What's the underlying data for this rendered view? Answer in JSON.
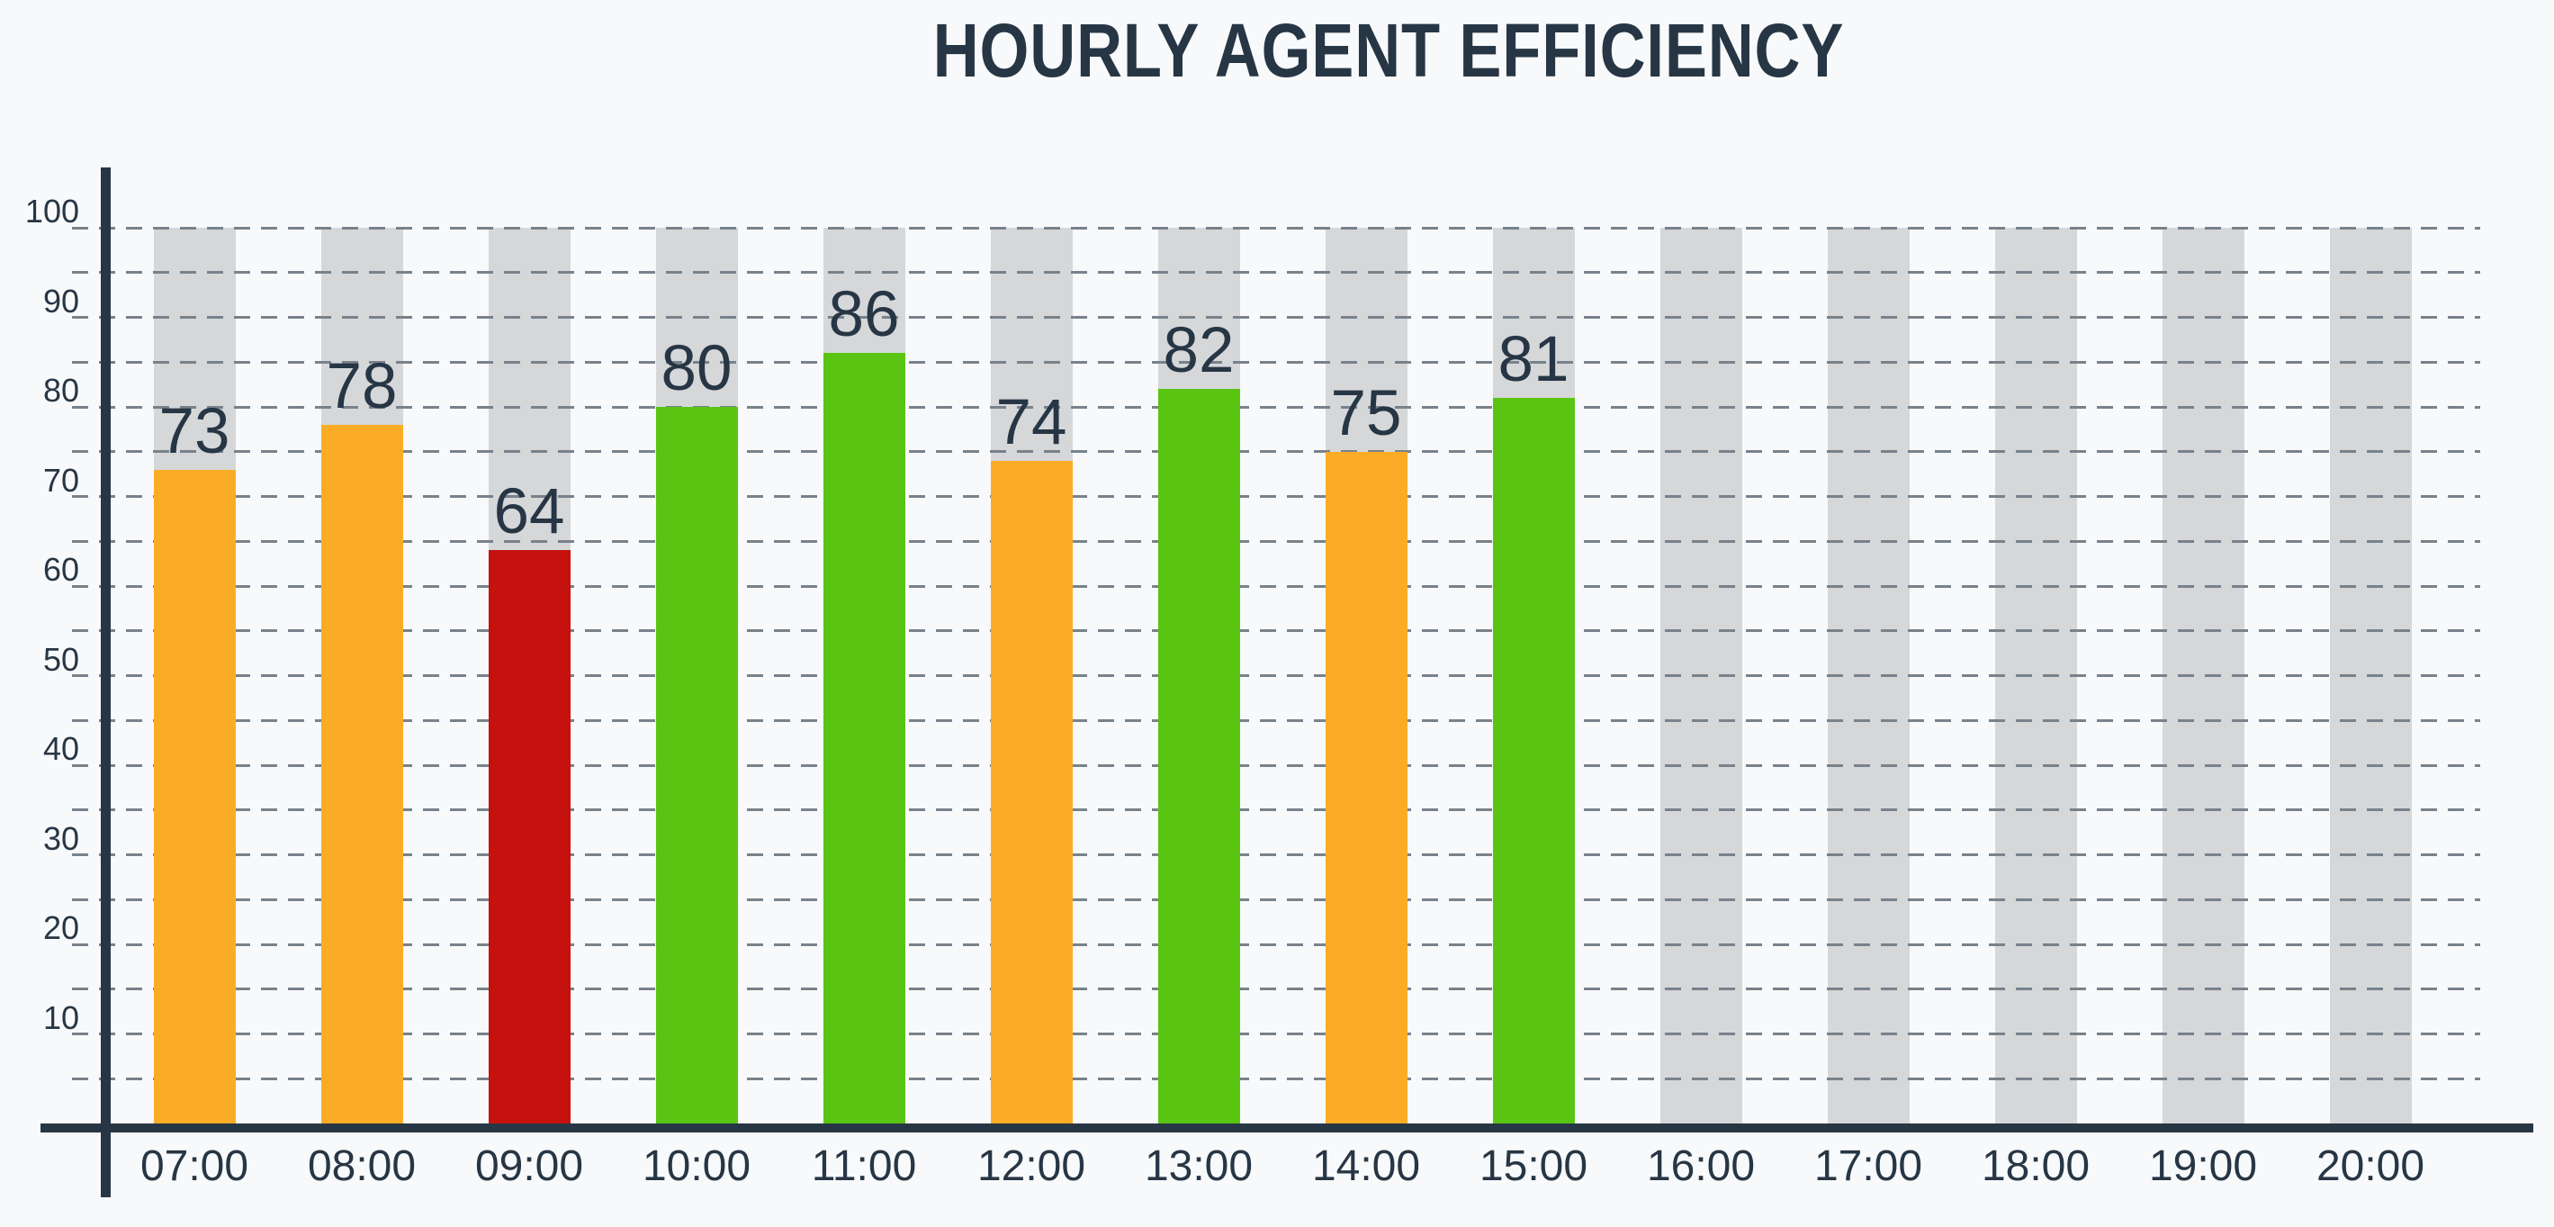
{
  "title": "HOURLY AGENT EFFICIENCY",
  "colors": {
    "background": "#F8F9FA",
    "text": "#273645",
    "axis": "#273645",
    "gridline": "#78828C",
    "track": "#D5D7D9",
    "orange": "#FBAC26",
    "red": "#C5120E",
    "green": "#5AC413"
  },
  "chart_data": {
    "type": "bar",
    "title": "HOURLY AGENT EFFICIENCY",
    "categories": [
      "07:00",
      "08:00",
      "09:00",
      "10:00",
      "11:00",
      "12:00",
      "13:00",
      "14:00",
      "15:00",
      "16:00",
      "17:00",
      "18:00",
      "19:00",
      "20:00"
    ],
    "values": [
      73,
      78,
      64,
      80,
      86,
      74,
      82,
      75,
      81,
      null,
      null,
      null,
      null,
      null
    ],
    "value_labels": [
      "73",
      "78",
      "64",
      "80",
      "86",
      "74",
      "82",
      "75",
      "81",
      "",
      "",
      "",
      "",
      ""
    ],
    "bar_color_names": [
      "orange",
      "orange",
      "red",
      "green",
      "green",
      "orange",
      "green",
      "orange",
      "green",
      null,
      null,
      null,
      null,
      null
    ],
    "xlabel": "",
    "ylabel": "",
    "ylim": [
      0,
      100
    ],
    "y_tick_labels": [
      "10",
      "20",
      "30",
      "40",
      "50",
      "60",
      "70",
      "80",
      "90",
      "100"
    ],
    "y_label_interval": 10,
    "gridline_interval": 5,
    "grid_style": "horizontal-dashed",
    "legend": "none",
    "background_track_max": 100
  }
}
